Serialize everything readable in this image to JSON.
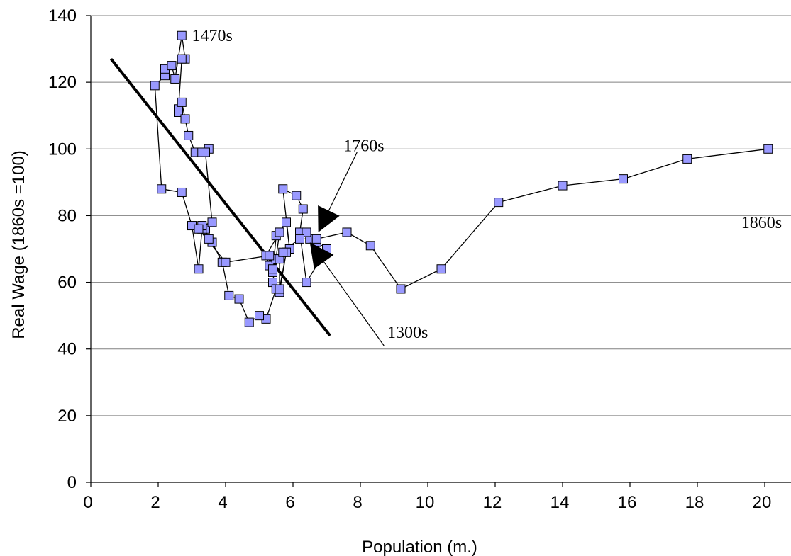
{
  "chart_data": {
    "type": "line",
    "title": "",
    "xlabel": "Population (m.)",
    "ylabel": "Real Wage (1860s =100)",
    "xlim": [
      0,
      21
    ],
    "ylim": [
      0,
      140
    ],
    "x_ticks": [
      0,
      2,
      4,
      6,
      8,
      10,
      12,
      14,
      16,
      18,
      20
    ],
    "y_ticks": [
      0,
      20,
      40,
      60,
      80,
      100,
      120,
      140
    ],
    "grid": "horizontal",
    "legend": "none",
    "marker": "square",
    "marker_color": "#9999ff",
    "line_color": "#000000",
    "series": [
      {
        "x": [
          6.5,
          6.7,
          7.0,
          6.4,
          6.2,
          6.3,
          6.1,
          5.7,
          5.9,
          5.8,
          5.6,
          5.5,
          5.4,
          5.3,
          5.2,
          5.6,
          5.4,
          5.5,
          5.8,
          5.6,
          5.5,
          5.2,
          5.0,
          4.7,
          4.4,
          4.1,
          3.9,
          3.6,
          3.5,
          3.4,
          3.3,
          3.2,
          3.0,
          2.7,
          2.1,
          1.9,
          2.2,
          2.2,
          2.4,
          2.5,
          2.7,
          2.8,
          2.7,
          2.6,
          2.6,
          2.7,
          2.8,
          2.9,
          3.1,
          3.3,
          3.5,
          3.4,
          3.6,
          3.3,
          3.2,
          4.0,
          5.3,
          5.4,
          5.6,
          5.6,
          5.8,
          5.7,
          6.4,
          6.2,
          6.7,
          7.6,
          8.3,
          9.2,
          10.4,
          12.1,
          14.0,
          15.8,
          17.7,
          20.1
        ],
        "y": [
          73,
          72,
          70,
          60,
          75,
          82,
          86,
          88,
          70,
          78,
          75,
          74,
          63,
          65,
          68,
          75,
          60,
          67,
          69,
          57,
          58,
          49,
          50,
          48,
          55,
          56,
          66,
          72,
          73,
          76,
          76,
          64,
          77,
          87,
          88,
          119,
          122,
          124,
          125,
          121,
          134,
          127,
          127,
          112,
          111,
          114,
          109,
          104,
          99,
          99,
          100,
          99,
          78,
          77,
          76,
          66,
          68,
          64,
          67,
          58,
          69,
          69,
          75,
          73,
          73,
          75,
          71,
          58,
          64,
          84,
          89,
          91,
          97,
          100
        ]
      }
    ],
    "trend_line": {
      "x": [
        0.6,
        7.1
      ],
      "y": [
        127,
        44
      ]
    },
    "annotations": [
      {
        "text": "1470s",
        "x": 3.0,
        "y": 134
      },
      {
        "text": "1760s",
        "x": 7.5,
        "y": 101
      },
      {
        "text": "1860s",
        "x": 19.3,
        "y": 78
      },
      {
        "text": "1300s",
        "x": 8.8,
        "y": 45
      }
    ],
    "pointers": [
      {
        "label": "1760s",
        "from": [
          7.9,
          99
        ],
        "tip": [
          6.75,
          75
        ]
      },
      {
        "label": "1300s",
        "from": [
          8.7,
          41
        ],
        "tip": [
          6.5,
          72
        ]
      }
    ]
  }
}
